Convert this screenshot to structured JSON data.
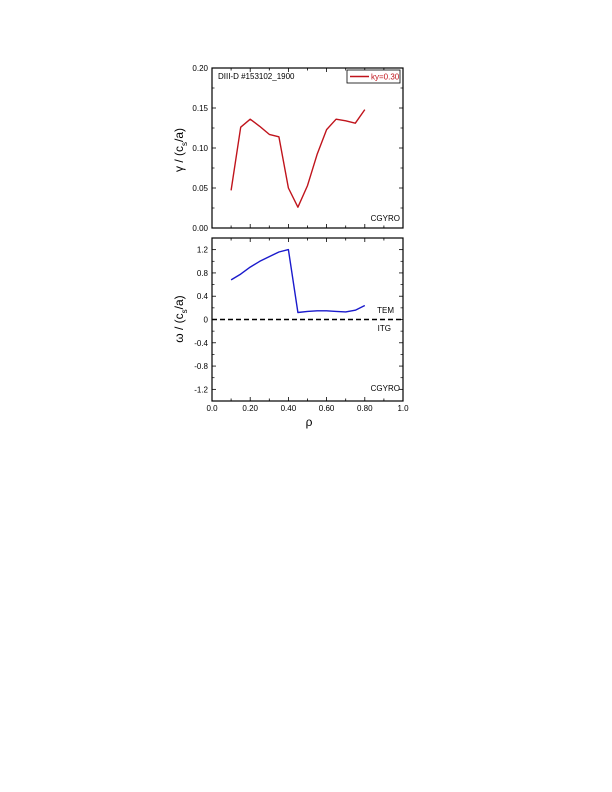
{
  "chart_data": [
    {
      "type": "line",
      "id": "growth-rate",
      "ylabel": "γ / (c_s/a)",
      "ylabel_main": "γ / (c",
      "ylabel_sub": "s",
      "ylabel_tail": "/a)",
      "xlim": [
        0.0,
        1.0
      ],
      "ylim": [
        0.0,
        0.2
      ],
      "yticks": [
        "0.00",
        "0.05",
        "0.10",
        "0.15",
        "0.20"
      ],
      "yticks_values": [
        0.0,
        0.05,
        0.1,
        0.15,
        0.2
      ],
      "grid": false,
      "legend_position": "top-right",
      "series": [
        {
          "name": "ky=0.30",
          "color": "#c0141c",
          "x": [
            0.1,
            0.15,
            0.2,
            0.25,
            0.3,
            0.35,
            0.4,
            0.45,
            0.5,
            0.55,
            0.6,
            0.65,
            0.7,
            0.75,
            0.8
          ],
          "y": [
            0.047,
            0.126,
            0.136,
            0.127,
            0.117,
            0.114,
            0.05,
            0.026,
            0.053,
            0.092,
            0.123,
            0.136,
            0.134,
            0.131,
            0.148
          ]
        }
      ],
      "annotations": {
        "shot": "DIII-D #153102_1900",
        "code": "CGYRO"
      }
    },
    {
      "type": "line",
      "id": "frequency",
      "xlabel": "ρ",
      "ylabel": "ω / (c_s/a)",
      "ylabel_main": "ω / (c",
      "ylabel_sub": "s",
      "ylabel_tail": "/a)",
      "xlim": [
        0.0,
        1.0
      ],
      "ylim": [
        -1.4,
        1.4
      ],
      "xticks": [
        "0.0",
        "0.20",
        "0.40",
        "0.60",
        "0.80",
        "1.0"
      ],
      "xticks_values": [
        0.0,
        0.2,
        0.4,
        0.6,
        0.8,
        1.0
      ],
      "yticks": [
        "-1.2",
        "-0.8",
        "-0.4",
        "0",
        "0.4",
        "0.8",
        "1.2"
      ],
      "yticks_values": [
        -1.2,
        -0.8,
        -0.4,
        0.0,
        0.4,
        0.8,
        1.2
      ],
      "grid": false,
      "series": [
        {
          "color": "#1a1acc",
          "x": [
            0.1,
            0.15,
            0.2,
            0.25,
            0.3,
            0.35,
            0.4,
            0.45,
            0.5,
            0.55,
            0.6,
            0.65,
            0.7,
            0.75,
            0.8
          ],
          "y": [
            0.68,
            0.78,
            0.9,
            1.0,
            1.08,
            1.16,
            1.2,
            0.12,
            0.14,
            0.15,
            0.15,
            0.14,
            0.13,
            0.16,
            0.24
          ]
        }
      ],
      "reference_line": {
        "y": 0.0,
        "style": "dashed",
        "color": "#000000"
      },
      "annotations": {
        "above_zero": "TEM",
        "below_zero": "ITG",
        "code": "CGYRO"
      }
    }
  ]
}
